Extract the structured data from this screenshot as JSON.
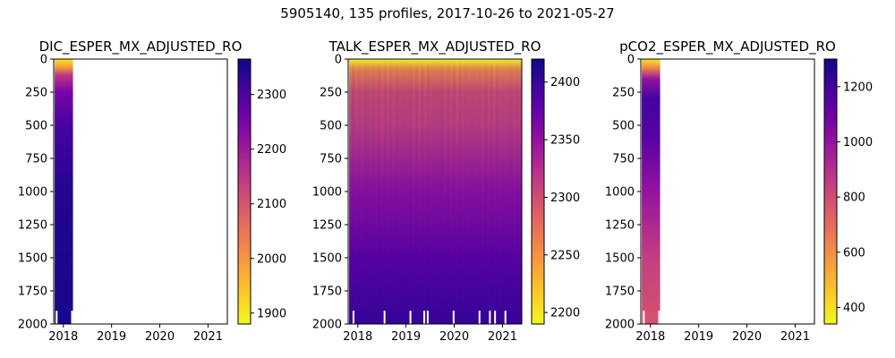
{
  "suptitle": "5905140, 135 profiles, 2017-10-26 to 2021-05-27",
  "chart_data": [
    {
      "type": "heatmap",
      "title": "DIC_ESPER_MX_ADJUSTED_RO",
      "x_ticks": [
        "2018",
        "2019",
        "2020",
        "2021"
      ],
      "x_tick_values": [
        2018,
        2019,
        2020,
        2021
      ],
      "xlim": [
        2017.8,
        2021.4
      ],
      "data_xrange": [
        2017.82,
        2018.2
      ],
      "y_ticks": [
        "0",
        "250",
        "500",
        "750",
        "1000",
        "1250",
        "1500",
        "1750",
        "2000"
      ],
      "ylim": [
        2000,
        0
      ],
      "colormap": "plasma_r",
      "colorbar": {
        "ticks": [
          "1900",
          "2000",
          "2100",
          "2200",
          "2300"
        ],
        "min": 1880,
        "max": 2365
      },
      "depth_profile": [
        {
          "depth": 0,
          "value": 1900
        },
        {
          "depth": 60,
          "value": 1990
        },
        {
          "depth": 120,
          "value": 2150
        },
        {
          "depth": 250,
          "value": 2250
        },
        {
          "depth": 500,
          "value": 2310
        },
        {
          "depth": 1000,
          "value": 2345
        },
        {
          "depth": 2000,
          "value": 2355
        }
      ]
    },
    {
      "type": "heatmap",
      "title": "TALK_ESPER_MX_ADJUSTED_RO",
      "x_ticks": [
        "2018",
        "2019",
        "2020",
        "2021"
      ],
      "x_tick_values": [
        2018,
        2019,
        2020,
        2021
      ],
      "xlim": [
        2017.8,
        2021.4
      ],
      "data_xrange": [
        2017.82,
        2021.4
      ],
      "y_ticks": [
        "0",
        "250",
        "500",
        "750",
        "1000",
        "1250",
        "1500",
        "1750",
        "2000"
      ],
      "ylim": [
        2000,
        0
      ],
      "colormap": "plasma_r",
      "colorbar": {
        "ticks": [
          "2200",
          "2250",
          "2300",
          "2350",
          "2400"
        ],
        "min": 2190,
        "max": 2420
      },
      "depth_profile": [
        {
          "depth": 0,
          "value": 2200
        },
        {
          "depth": 80,
          "value": 2255
        },
        {
          "depth": 250,
          "value": 2300
        },
        {
          "depth": 500,
          "value": 2310
        },
        {
          "depth": 1000,
          "value": 2350
        },
        {
          "depth": 1500,
          "value": 2380
        },
        {
          "depth": 2000,
          "value": 2400
        }
      ]
    },
    {
      "type": "heatmap",
      "title": "pCO2_ESPER_MX_ADJUSTED_RO",
      "x_ticks": [
        "2018",
        "2019",
        "2020",
        "2021"
      ],
      "x_tick_values": [
        2018,
        2019,
        2020,
        2021
      ],
      "xlim": [
        2017.8,
        2021.4
      ],
      "data_xrange": [
        2017.82,
        2018.2
      ],
      "y_ticks": [
        "0",
        "250",
        "500",
        "750",
        "1000",
        "1250",
        "1500",
        "1750",
        "2000"
      ],
      "ylim": [
        2000,
        0
      ],
      "colormap": "plasma_r",
      "colorbar": {
        "ticks": [
          "400",
          "600",
          "800",
          "1000",
          "1200"
        ],
        "min": 340,
        "max": 1300
      },
      "depth_profile": [
        {
          "depth": 0,
          "value": 380
        },
        {
          "depth": 60,
          "value": 600
        },
        {
          "depth": 150,
          "value": 1000
        },
        {
          "depth": 300,
          "value": 1200
        },
        {
          "depth": 600,
          "value": 1150
        },
        {
          "depth": 1000,
          "value": 1000
        },
        {
          "depth": 1500,
          "value": 850
        },
        {
          "depth": 2000,
          "value": 780
        }
      ]
    }
  ]
}
